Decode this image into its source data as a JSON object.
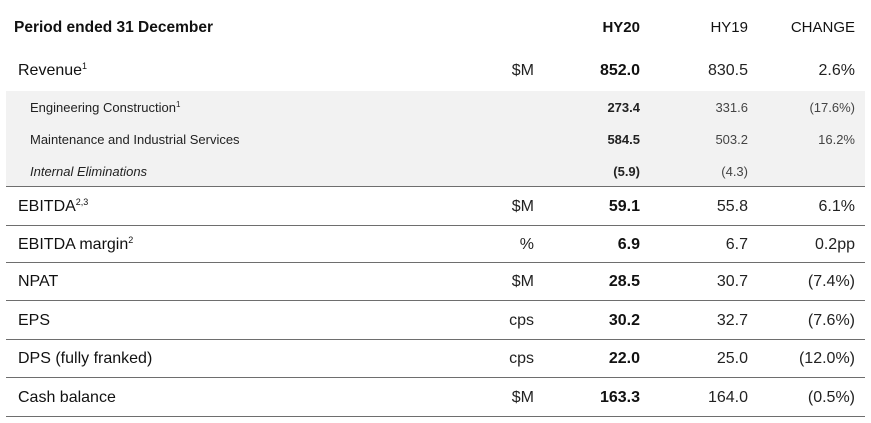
{
  "header": {
    "title": "Period ended 31 December",
    "col_hy20": "HY20",
    "col_hy19": "HY19",
    "col_change": "CHANGE"
  },
  "rows": [
    {
      "label": "Revenue",
      "sup": "1",
      "unit": "$M",
      "hy20": "852.0",
      "hy19": "830.5",
      "change": "2.6%"
    },
    {
      "label": "Engineering Construction",
      "sup": "1",
      "unit": "",
      "hy20": "273.4",
      "hy19": "331.6",
      "change": "(17.6%)"
    },
    {
      "label": "Maintenance and Industrial Services",
      "sup": "",
      "unit": "",
      "hy20": "584.5",
      "hy19": "503.2",
      "change": "16.2%"
    },
    {
      "label": "Internal Eliminations",
      "sup": "",
      "unit": "",
      "hy20": "(5.9)",
      "hy19": "(4.3)",
      "change": ""
    },
    {
      "label": "EBITDA",
      "sup": "2,3",
      "unit": "$M",
      "hy20": "59.1",
      "hy19": "55.8",
      "change": "6.1%"
    },
    {
      "label": "EBITDA margin",
      "sup": "2",
      "unit": "%",
      "hy20": "6.9",
      "hy19": "6.7",
      "change": "0.2pp"
    },
    {
      "label": "NPAT",
      "sup": "",
      "unit": "$M",
      "hy20": "28.5",
      "hy19": "30.7",
      "change": "(7.4%)"
    },
    {
      "label": "EPS",
      "sup": "",
      "unit": "cps",
      "hy20": "30.2",
      "hy19": "32.7",
      "change": "(7.6%)"
    },
    {
      "label": "DPS (fully franked)",
      "sup": "",
      "unit": "cps",
      "hy20": "22.0",
      "hy19": "25.0",
      "change": "(12.0%)"
    },
    {
      "label": "Cash balance",
      "sup": "",
      "unit": "$M",
      "hy20": "163.3",
      "hy19": "164.0",
      "change": "(0.5%)"
    }
  ]
}
